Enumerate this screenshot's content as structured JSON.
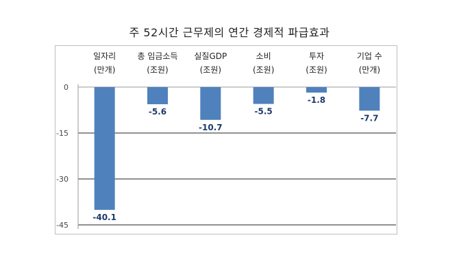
{
  "title": "주 52시간 근무제의 연간 경제적 파급효과",
  "chart_data": {
    "type": "bar",
    "title": "주 52시간 근무제의 연간 경제적 파급효과",
    "categories": [
      {
        "name": "일자리",
        "unit": "(만개)"
      },
      {
        "name": "총 임금소득",
        "unit": "(조원)"
      },
      {
        "name": "실질GDP",
        "unit": "(조원)"
      },
      {
        "name": "소비",
        "unit": "(조원)"
      },
      {
        "name": "투자",
        "unit": "(조원)"
      },
      {
        "name": "기업 수",
        "unit": "(만개)"
      }
    ],
    "values": [
      -40.1,
      -5.6,
      -10.7,
      -5.5,
      -1.8,
      -7.7
    ],
    "value_labels": [
      "-40.1",
      "-5.6",
      "-10.7",
      "-5.5",
      "-1.8",
      "-7.7"
    ],
    "yticks": [
      "0",
      "-15",
      "-30",
      "-45"
    ],
    "ylim": [
      -45,
      0
    ],
    "grid": true,
    "bar_color": "#4f81bd"
  }
}
